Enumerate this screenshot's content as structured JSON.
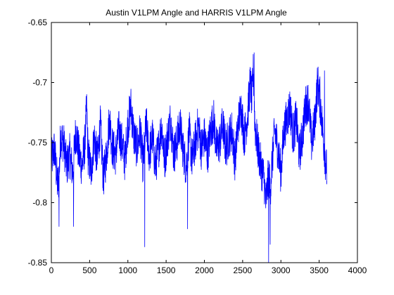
{
  "chart_data": {
    "type": "line",
    "title": "Austin V1LPM Angle and HARRIS V1LPM Angle",
    "xlabel": "",
    "ylabel": "",
    "xlim": [
      0,
      4000
    ],
    "ylim": [
      -0.85,
      -0.65
    ],
    "xticks": [
      0,
      500,
      1000,
      1500,
      2000,
      2500,
      3000,
      3500,
      4000
    ],
    "yticks": [
      -0.65,
      -0.7,
      -0.75,
      -0.8,
      -0.85
    ],
    "xtick_labels": [
      "0",
      "500",
      "1000",
      "1500",
      "2000",
      "2500",
      "3000",
      "3500",
      "4000"
    ],
    "ytick_labels": [
      "-0.65",
      "-0.7",
      "-0.75",
      "-0.8",
      "-0.85"
    ],
    "grid": false,
    "legend": "none",
    "series_color": "#0000ff",
    "series": [
      {
        "x": [
          0,
          40,
          80,
          100,
          120,
          160,
          200,
          240,
          280,
          320,
          360,
          400,
          440,
          460,
          480,
          520,
          560,
          600,
          640,
          680,
          720,
          760,
          800,
          840,
          880,
          920,
          960,
          1000,
          1040,
          1080,
          1120,
          1160,
          1200,
          1220,
          1240,
          1280,
          1320,
          1360,
          1400,
          1440,
          1480,
          1520,
          1560,
          1600,
          1640,
          1680,
          1720,
          1760,
          1780,
          1800,
          1840,
          1880,
          1920,
          1960,
          2000,
          2040,
          2080,
          2120,
          2160,
          2200,
          2240,
          2280,
          2320,
          2360,
          2400,
          2440,
          2480,
          2520,
          2560,
          2600,
          2620,
          2640,
          2660,
          2700,
          2740,
          2780,
          2800,
          2820,
          2840,
          2860,
          2880,
          2920,
          2960,
          3000,
          3040,
          3080,
          3120,
          3160,
          3200,
          3240,
          3280,
          3320,
          3360,
          3400,
          3440,
          3480,
          3520,
          3560,
          3600
        ],
        "values": [
          -0.765,
          -0.755,
          -0.785,
          -0.78,
          -0.745,
          -0.75,
          -0.77,
          -0.76,
          -0.775,
          -0.74,
          -0.76,
          -0.77,
          -0.75,
          -0.72,
          -0.76,
          -0.775,
          -0.745,
          -0.765,
          -0.735,
          -0.78,
          -0.76,
          -0.73,
          -0.755,
          -0.76,
          -0.74,
          -0.75,
          -0.765,
          -0.735,
          -0.72,
          -0.745,
          -0.755,
          -0.74,
          -0.77,
          -0.75,
          -0.735,
          -0.76,
          -0.745,
          -0.77,
          -0.755,
          -0.735,
          -0.765,
          -0.745,
          -0.73,
          -0.76,
          -0.75,
          -0.735,
          -0.755,
          -0.77,
          -0.76,
          -0.74,
          -0.765,
          -0.75,
          -0.735,
          -0.755,
          -0.745,
          -0.76,
          -0.74,
          -0.73,
          -0.755,
          -0.75,
          -0.735,
          -0.755,
          -0.745,
          -0.74,
          -0.765,
          -0.735,
          -0.72,
          -0.745,
          -0.73,
          -0.7,
          -0.715,
          -0.69,
          -0.735,
          -0.755,
          -0.77,
          -0.78,
          -0.8,
          -0.79,
          -0.775,
          -0.79,
          -0.77,
          -0.74,
          -0.755,
          -0.775,
          -0.74,
          -0.73,
          -0.72,
          -0.745,
          -0.73,
          -0.76,
          -0.745,
          -0.72,
          -0.715,
          -0.75,
          -0.735,
          -0.7,
          -0.72,
          -0.75,
          -0.775
        ],
        "noise_amplitude": 0.018,
        "spikes": [
          {
            "x": 100,
            "y": -0.82
          },
          {
            "x": 290,
            "y": -0.82
          },
          {
            "x": 1220,
            "y": -0.837
          },
          {
            "x": 1780,
            "y": -0.822
          },
          {
            "x": 2840,
            "y": -0.85
          },
          {
            "x": 2860,
            "y": -0.835
          },
          {
            "x": 2650,
            "y": -0.675
          },
          {
            "x": 3570,
            "y": -0.69
          },
          {
            "x": 3510,
            "y": -0.695
          }
        ]
      }
    ]
  }
}
